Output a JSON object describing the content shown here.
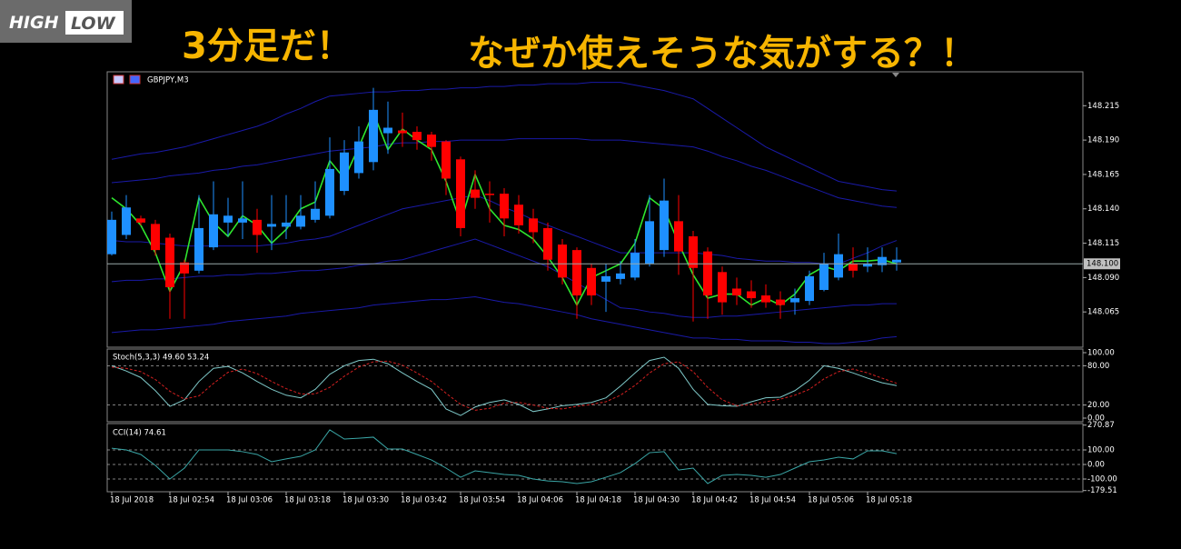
{
  "header": {
    "logo_high": "HIGH",
    "logo_low": "LOW",
    "caption_left": "3分足だ！",
    "caption_right": "なぜか使えそうな気がする？！"
  },
  "chart_data": [
    {
      "type": "candlestick",
      "title": "GBPJPY,M3",
      "categories": [
        "18 Jul 2018",
        null,
        null,
        null,
        "18 Jul 02:54",
        null,
        null,
        null,
        "18 Jul 03:06",
        null,
        null,
        null,
        "18 Jul 03:18",
        null,
        null,
        null,
        "18 Jul 03:30",
        null,
        null,
        null,
        "18 Jul 03:42",
        null,
        null,
        null,
        "18 Jul 03:54",
        null,
        null,
        null,
        "18 Jul 04:06",
        null,
        null,
        null,
        "18 Jul 04:18",
        null,
        null,
        null,
        "18 Jul 04:30",
        null,
        null,
        null,
        "18 Jul 04:42",
        null,
        null,
        null,
        "18 Jul 04:54",
        null,
        null,
        null,
        "18 Jul 05:06",
        null,
        null,
        null,
        "18 Jul 05:18",
        null,
        null
      ],
      "open": [
        148.107,
        148.121,
        148.133,
        148.129,
        148.119,
        148.101,
        148.095,
        148.112,
        148.13,
        148.13,
        148.132,
        148.127,
        148.127,
        148.127,
        148.132,
        148.135,
        148.153,
        148.166,
        148.174,
        148.195,
        148.197,
        148.196,
        148.194,
        148.189,
        148.176,
        148.154,
        148.151,
        148.151,
        148.143,
        148.133,
        148.126,
        148.114,
        148.11,
        148.097,
        148.087,
        148.089,
        148.09,
        148.1,
        148.11,
        148.131,
        148.12,
        148.109,
        148.094,
        148.082,
        148.08,
        148.077,
        148.074,
        148.072,
        148.073,
        148.081,
        148.09,
        148.1,
        148.098,
        148.099,
        148.101
      ],
      "high": [
        148.138,
        148.15,
        148.135,
        148.132,
        148.122,
        148.103,
        148.15,
        148.16,
        148.148,
        148.16,
        148.14,
        148.15,
        148.15,
        148.15,
        148.16,
        148.192,
        148.19,
        148.2,
        148.228,
        148.218,
        148.21,
        148.2,
        148.196,
        148.19,
        148.178,
        148.168,
        148.16,
        148.155,
        148.15,
        148.14,
        148.13,
        148.118,
        148.112,
        148.1,
        148.1,
        148.102,
        148.118,
        148.15,
        148.162,
        148.15,
        148.124,
        148.112,
        148.098,
        148.09,
        148.088,
        148.085,
        148.08,
        148.082,
        148.095,
        148.108,
        148.122,
        148.112,
        148.112,
        148.112,
        148.112
      ],
      "low": [
        148.106,
        148.118,
        148.128,
        148.106,
        148.06,
        148.06,
        148.093,
        148.11,
        148.12,
        148.118,
        148.108,
        148.11,
        148.118,
        148.125,
        148.13,
        148.133,
        148.15,
        148.162,
        148.168,
        148.18,
        148.185,
        148.183,
        148.175,
        148.15,
        148.12,
        148.14,
        148.13,
        148.12,
        148.122,
        148.115,
        148.095,
        148.085,
        148.06,
        148.07,
        148.065,
        148.085,
        148.088,
        148.098,
        148.105,
        148.092,
        148.058,
        148.06,
        148.063,
        148.07,
        148.068,
        148.068,
        148.06,
        148.063,
        148.07,
        148.08,
        148.088,
        148.09,
        148.094,
        148.094,
        148.095
      ],
      "close": [
        148.132,
        148.141,
        148.13,
        148.11,
        148.083,
        148.093,
        148.126,
        148.136,
        148.135,
        148.133,
        148.121,
        148.129,
        148.13,
        148.135,
        148.14,
        148.169,
        148.181,
        148.189,
        148.212,
        148.199,
        148.195,
        148.19,
        148.185,
        148.162,
        148.126,
        148.148,
        148.15,
        148.133,
        148.128,
        148.123,
        148.103,
        148.09,
        148.077,
        148.077,
        148.091,
        148.093,
        148.108,
        148.131,
        148.146,
        148.109,
        148.097,
        148.077,
        148.072,
        148.077,
        148.075,
        148.072,
        148.07,
        148.075,
        148.091,
        148.1,
        148.107,
        148.095,
        148.1,
        148.105,
        148.103
      ],
      "up_color": "#1e90ff",
      "down_color": "#ff0000",
      "series": [
        {
          "color": "#1a1aa8",
          "values": [
            148.176,
            148.178,
            148.18,
            148.181,
            148.183,
            148.185,
            148.188,
            148.191,
            148.194,
            148.197,
            148.2,
            148.204,
            148.209,
            148.213,
            148.218,
            148.222,
            148.223,
            148.224,
            148.225,
            148.225,
            148.226,
            148.226,
            148.227,
            148.227,
            148.228,
            148.228,
            148.229,
            148.229,
            148.23,
            148.23,
            148.231,
            148.231,
            148.231,
            148.232,
            148.232,
            148.232,
            148.23,
            148.228,
            148.226,
            148.223,
            148.22,
            148.213,
            148.206,
            148.199,
            148.192,
            148.185,
            148.18,
            148.175,
            148.17,
            148.165,
            148.16,
            148.158,
            148.156,
            148.154,
            148.153
          ]
        },
        {
          "color": "#1a1aa8",
          "values": [
            148.159,
            148.16,
            148.161,
            148.162,
            148.164,
            148.165,
            148.166,
            148.168,
            148.169,
            148.171,
            148.172,
            148.174,
            148.176,
            148.178,
            148.18,
            148.182,
            148.183,
            148.184,
            148.185,
            148.187,
            148.188,
            148.188,
            148.189,
            148.189,
            148.19,
            148.19,
            148.19,
            148.19,
            148.191,
            148.191,
            148.191,
            148.191,
            148.191,
            148.19,
            148.19,
            148.19,
            148.189,
            148.188,
            148.187,
            148.186,
            148.185,
            148.182,
            148.178,
            148.175,
            148.171,
            148.168,
            148.164,
            148.16,
            148.156,
            148.152,
            148.148,
            148.146,
            148.144,
            148.142,
            148.141
          ]
        },
        {
          "color": "#1a1aa8",
          "values": [
            148.117,
            148.116,
            148.116,
            148.115,
            148.114,
            148.113,
            148.113,
            148.113,
            148.113,
            148.113,
            148.113,
            148.114,
            148.115,
            148.117,
            148.118,
            148.12,
            148.124,
            148.128,
            148.132,
            148.136,
            148.14,
            148.142,
            148.144,
            148.146,
            148.148,
            148.15,
            148.146,
            148.141,
            148.137,
            148.132,
            148.128,
            148.124,
            148.12,
            148.116,
            148.112,
            148.108,
            148.108,
            148.108,
            148.108,
            148.108,
            148.108,
            148.107,
            148.106,
            148.104,
            148.103,
            148.102,
            148.102,
            148.101,
            148.101,
            148.1,
            148.1,
            148.104,
            148.108,
            148.113,
            148.117
          ]
        },
        {
          "color": "#1a1aa8",
          "values": [
            148.087,
            148.088,
            148.088,
            148.089,
            148.089,
            148.09,
            148.091,
            148.091,
            148.092,
            148.092,
            148.093,
            148.093,
            148.094,
            148.095,
            148.095,
            148.096,
            148.097,
            148.099,
            148.1,
            148.102,
            148.103,
            148.106,
            148.109,
            148.112,
            148.115,
            148.118,
            148.114,
            148.11,
            148.106,
            148.102,
            148.098,
            148.092,
            148.086,
            148.08,
            148.074,
            148.068,
            148.067,
            148.065,
            148.064,
            148.062,
            148.061,
            148.061,
            148.062,
            148.062,
            148.063,
            148.064,
            148.065,
            148.066,
            148.067,
            148.068,
            148.069,
            148.07,
            148.07,
            148.071,
            148.071
          ]
        },
        {
          "color": "#1a1aa8",
          "values": [
            148.05,
            148.051,
            148.052,
            148.052,
            148.053,
            148.054,
            148.055,
            148.056,
            148.058,
            148.059,
            148.06,
            148.061,
            148.062,
            148.064,
            148.065,
            148.066,
            148.067,
            148.068,
            148.07,
            148.071,
            148.072,
            148.073,
            148.074,
            148.074,
            148.075,
            148.076,
            148.074,
            148.072,
            148.071,
            148.069,
            148.067,
            148.065,
            148.063,
            148.06,
            148.058,
            148.056,
            148.054,
            148.052,
            148.05,
            148.048,
            148.046,
            148.046,
            148.045,
            148.045,
            148.044,
            148.044,
            148.044,
            148.043,
            148.043,
            148.042,
            148.042,
            148.043,
            148.044,
            148.046,
            148.047
          ]
        },
        {
          "color": "#2ee62e",
          "values": [
            148.148,
            148.14,
            148.128,
            148.108,
            148.08,
            148.1,
            148.148,
            148.13,
            148.12,
            148.135,
            148.128,
            148.115,
            148.125,
            148.14,
            148.145,
            148.175,
            148.162,
            148.185,
            148.21,
            148.183,
            148.198,
            148.19,
            148.183,
            148.16,
            148.13,
            148.165,
            148.14,
            148.128,
            148.125,
            148.118,
            148.105,
            148.09,
            148.07,
            148.09,
            148.095,
            148.1,
            148.115,
            148.148,
            148.14,
            148.115,
            148.092,
            148.075,
            148.078,
            148.078,
            148.07,
            148.075,
            148.07,
            148.078,
            148.092,
            148.098,
            148.095,
            148.102,
            148.102,
            148.103,
            148.1
          ]
        }
      ],
      "current_price": {
        "value": 148.1,
        "label": "148.100"
      },
      "ylim": [
        148.04,
        148.239
      ],
      "yticks": [
        148.215,
        {
          "value": 148.19,
          "label": "148.190"
        },
        148.165,
        {
          "value": 148.14,
          "label": "148.140"
        },
        148.115,
        {
          "value": 148.09,
          "label": "148.090"
        },
        148.065
      ],
      "grid": false
    },
    {
      "type": "line",
      "title": "Stoch(5,3,3) 49.60 53.24",
      "series": [
        {
          "color": "#7ec8c8",
          "values": [
            80,
            72,
            62,
            42,
            18,
            28,
            56,
            76,
            79,
            69,
            56,
            44,
            35,
            31,
            44,
            67,
            80,
            88,
            90,
            83,
            69,
            56,
            44,
            14,
            4,
            17,
            24,
            28,
            21,
            10,
            14,
            19,
            21,
            24,
            31,
            49,
            69,
            88,
            93,
            76,
            44,
            21,
            19,
            18,
            25,
            31,
            32,
            42,
            58,
            80,
            76,
            69,
            61,
            54,
            49.6
          ]
        },
        {
          "color": "#d42020",
          "dash": true,
          "values": [
            78,
            76,
            71,
            59,
            41,
            29,
            34,
            53,
            70,
            75,
            68,
            56,
            45,
            37,
            37,
            47,
            64,
            78,
            86,
            87,
            81,
            69,
            56,
            38,
            21,
            12,
            15,
            23,
            24,
            20,
            15,
            14,
            18,
            21,
            25,
            35,
            50,
            69,
            83,
            86,
            71,
            47,
            28,
            19,
            21,
            25,
            29,
            35,
            44,
            60,
            71,
            75,
            69,
            61,
            53.24
          ]
        }
      ],
      "ylim": [
        0,
        100
      ],
      "yticks": [
        {
          "value": 100,
          "label": "100.00"
        },
        {
          "value": 80,
          "label": "80.00"
        },
        {
          "value": 20,
          "label": "20.00"
        },
        {
          "value": 0,
          "label": "0.00"
        }
      ],
      "grid": true
    },
    {
      "type": "line",
      "title": "CCI(14) 74.61",
      "series": [
        {
          "color": "#3aa6a6",
          "values": [
            112,
            100,
            69,
            -6,
            -100,
            -25,
            100,
            100,
            100,
            88,
            69,
            19,
            38,
            56,
            100,
            238,
            175,
            181,
            188,
            106,
            106,
            69,
            31,
            -25,
            -88,
            -44,
            -56,
            -69,
            -75,
            -100,
            -113,
            -119,
            -131,
            -119,
            -88,
            -56,
            6,
            81,
            88,
            -38,
            -25,
            -131,
            -75,
            -69,
            -75,
            -88,
            -69,
            -25,
            19,
            31,
            50,
            38,
            94,
            94,
            74.61
          ]
        }
      ],
      "ylim": [
        -179.51,
        270.87
      ],
      "yticks": [
        270.87,
        {
          "value": 100,
          "label": "100.00"
        },
        {
          "value": 0,
          "label": "0.00"
        },
        {
          "value": -100,
          "label": "-100.00"
        },
        -179.51
      ],
      "grid": true
    }
  ]
}
